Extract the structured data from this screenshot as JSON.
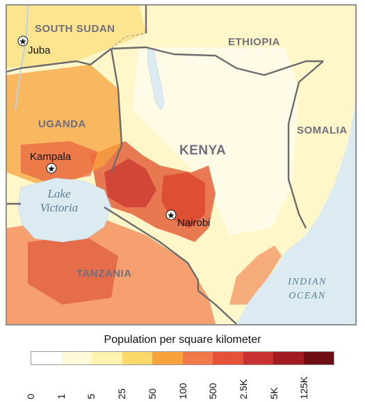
{
  "map": {
    "countries": {
      "south_sudan": "SOUTH SUDAN",
      "ethiopia": "ETHIOPIA",
      "uganda": "UGANDA",
      "kenya": "KENYA",
      "somalia": "SOMALIA",
      "tanzania": "TANZANIA"
    },
    "cities": {
      "juba": "Juba",
      "kampala": "Kampala",
      "nairobi": "Nairobi"
    },
    "water": {
      "lake_line1": "Lake",
      "lake_line2": "Victoria",
      "ocean_line1": "INDIAN",
      "ocean_line2": "OCEAN"
    },
    "colors": {
      "ocean": "#dcebf2",
      "border": "#6b6b6b",
      "low": "#fff7c9",
      "mid": "#f7a23b",
      "high": "#d9442a"
    }
  },
  "legend": {
    "title": "Population per square kilometer",
    "ticks": [
      "0",
      "1",
      "5",
      "25",
      "50",
      "100",
      "500",
      "2.5K",
      "5K",
      "125K"
    ],
    "colors": [
      "#ffffff",
      "#fffbd9",
      "#fef3b0",
      "#fbd96a",
      "#f7a23b",
      "#f27a4a",
      "#e4523a",
      "#c8312e",
      "#a11b20",
      "#6e0d12"
    ]
  }
}
